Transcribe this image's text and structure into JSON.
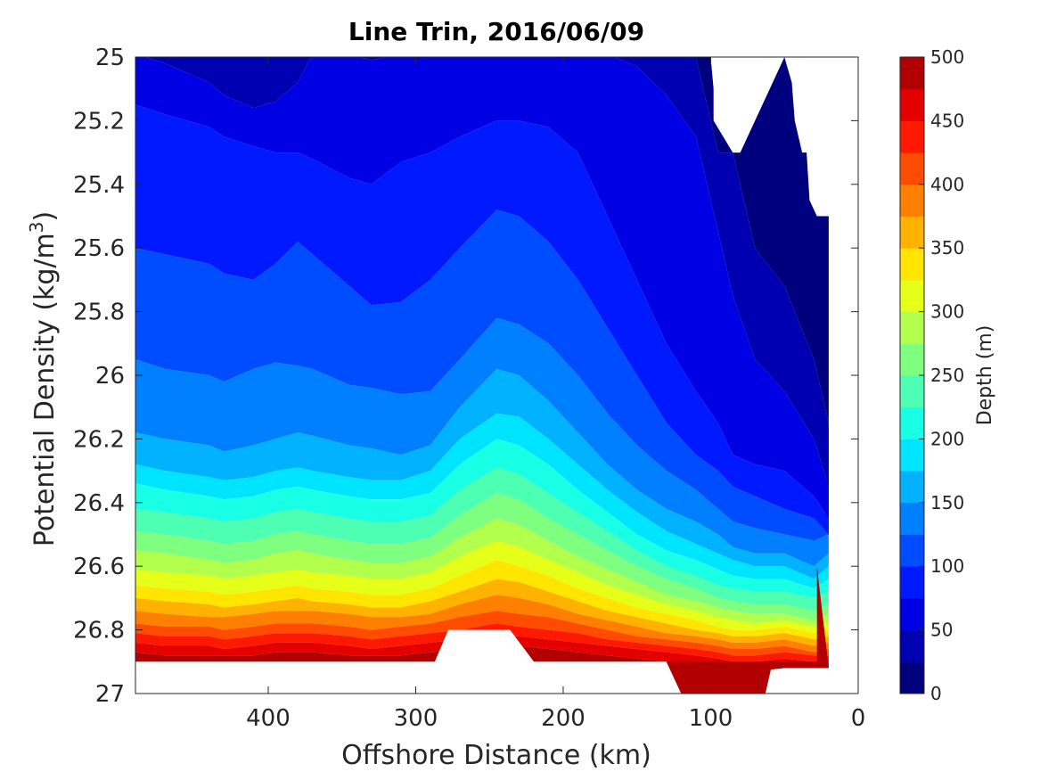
{
  "chart_data": {
    "type": "heatmap",
    "subtype": "filled-contour",
    "title": "Line Trin, 2016/06/09",
    "xlabel": "Offshore Distance (km)",
    "ylabel_main": "Potential Density (kg/m",
    "ylabel_sup": "3",
    "ylabel_tail": ")",
    "xlim": [
      490,
      0
    ],
    "xaxis_reversed": true,
    "ylim": [
      25,
      27
    ],
    "yaxis_reversed": true,
    "xticks": [
      400,
      300,
      200,
      100,
      0
    ],
    "xtick_labels": [
      "400",
      "300",
      "200",
      "100",
      "0"
    ],
    "yticks": [
      25,
      25.2,
      25.4,
      25.6,
      25.8,
      26,
      26.2,
      26.4,
      26.6,
      26.8,
      27
    ],
    "ytick_labels": [
      "25",
      "25.2",
      "25.4",
      "25.6",
      "25.8",
      "26",
      "26.2",
      "26.4",
      "26.6",
      "26.8",
      "27"
    ],
    "colorbar": {
      "label": "Depth (m)",
      "range": [
        0,
        500
      ],
      "level_step": 25,
      "ticks": [
        0,
        50,
        100,
        150,
        200,
        250,
        300,
        350,
        400,
        450,
        500
      ],
      "tick_labels": [
        "0",
        "50",
        "100",
        "150",
        "200",
        "250",
        "300",
        "350",
        "400",
        "450",
        "500"
      ],
      "colors": [
        "#00007f",
        "#0000b2",
        "#0000e5",
        "#0019ff",
        "#004cff",
        "#007fff",
        "#00b2ff",
        "#00e5ff",
        "#19ffe5",
        "#4cffb2",
        "#7fff7f",
        "#b2ff4c",
        "#e5ff19",
        "#ffe500",
        "#ffb200",
        "#ff7f00",
        "#ff4c00",
        "#ff1900",
        "#e50000",
        "#b20000"
      ]
    },
    "x_stations": [
      490,
      470,
      440,
      430,
      410,
      395,
      380,
      370,
      345,
      330,
      310,
      290,
      270,
      245,
      230,
      210,
      190,
      170,
      150,
      130,
      110,
      95,
      85,
      70,
      50,
      30,
      20
    ],
    "contour_lines": [
      {
        "depth": 25,
        "y": [
          24.99,
          24.99,
          24.99,
          24.99,
          24.99,
          24.99,
          24.99,
          24.99,
          24.99,
          24.99,
          24.99,
          24.99,
          24.99,
          24.99,
          24.99,
          24.99,
          24.99,
          24.99,
          24.99,
          24.99,
          25.0,
          25.3,
          25.3,
          25.6,
          25.72,
          25.95,
          26.15
        ]
      },
      {
        "depth": 50,
        "y": [
          24.99,
          25.02,
          25.08,
          25.12,
          25.16,
          25.14,
          25.08,
          24.99,
          24.99,
          25.01,
          24.99,
          24.99,
          24.99,
          24.99,
          24.99,
          24.99,
          24.99,
          24.99,
          25.03,
          25.12,
          25.25,
          25.55,
          25.75,
          25.95,
          26.05,
          26.2,
          26.35
        ]
      },
      {
        "depth": 75,
        "y": [
          25.15,
          25.18,
          25.22,
          25.25,
          25.28,
          25.3,
          25.3,
          25.32,
          25.38,
          25.4,
          25.33,
          25.3,
          25.25,
          25.2,
          25.2,
          25.22,
          25.3,
          25.5,
          25.7,
          25.9,
          26.05,
          26.15,
          26.25,
          26.28,
          26.3,
          26.38,
          26.45
        ]
      },
      {
        "depth": 100,
        "y": [
          25.6,
          25.62,
          25.65,
          25.68,
          25.7,
          25.65,
          25.58,
          25.62,
          25.72,
          25.78,
          25.77,
          25.7,
          25.6,
          25.48,
          25.5,
          25.58,
          25.7,
          25.85,
          26.0,
          26.15,
          26.25,
          26.3,
          26.35,
          26.38,
          26.42,
          26.45,
          26.5
        ]
      },
      {
        "depth": 125,
        "y": [
          25.95,
          25.98,
          26.0,
          26.02,
          25.98,
          25.96,
          25.97,
          25.98,
          26.03,
          26.04,
          26.06,
          26.05,
          25.95,
          25.82,
          25.84,
          25.9,
          26.0,
          26.12,
          26.22,
          26.3,
          26.36,
          26.42,
          26.46,
          26.48,
          26.5,
          26.52,
          26.5
        ]
      },
      {
        "depth": 150,
        "y": [
          26.18,
          26.2,
          26.22,
          26.24,
          26.22,
          26.2,
          26.18,
          26.19,
          26.22,
          26.23,
          26.25,
          26.22,
          26.1,
          25.98,
          26.0,
          26.08,
          26.18,
          26.28,
          26.36,
          26.42,
          26.46,
          26.5,
          26.54,
          26.56,
          26.56,
          26.6,
          26.56
        ]
      },
      {
        "depth": 175,
        "y": [
          26.28,
          26.3,
          26.32,
          26.33,
          26.32,
          26.3,
          26.29,
          26.3,
          26.32,
          26.33,
          26.33,
          26.3,
          26.2,
          26.12,
          26.13,
          26.2,
          26.28,
          26.36,
          26.43,
          26.49,
          26.53,
          26.56,
          26.58,
          26.6,
          26.6,
          26.64,
          26.6
        ]
      },
      {
        "depth": 200,
        "y": [
          26.34,
          26.36,
          26.38,
          26.39,
          26.38,
          26.36,
          26.35,
          26.36,
          26.38,
          26.39,
          26.39,
          26.37,
          26.28,
          26.2,
          26.22,
          26.28,
          26.36,
          26.43,
          26.5,
          26.55,
          26.58,
          26.61,
          26.63,
          26.64,
          26.64,
          26.67,
          26.64
        ]
      },
      {
        "depth": 225,
        "y": [
          26.42,
          26.43,
          26.45,
          26.46,
          26.45,
          26.43,
          26.42,
          26.43,
          26.45,
          26.46,
          26.46,
          26.44,
          26.36,
          26.29,
          26.31,
          26.37,
          26.43,
          26.49,
          26.55,
          26.6,
          26.63,
          26.66,
          26.67,
          26.68,
          26.68,
          26.7,
          26.68
        ]
      },
      {
        "depth": 250,
        "y": [
          26.49,
          26.5,
          26.52,
          26.53,
          26.52,
          26.5,
          26.49,
          26.5,
          26.52,
          26.53,
          26.53,
          26.51,
          26.44,
          26.37,
          26.39,
          26.45,
          26.5,
          26.55,
          26.6,
          26.64,
          26.67,
          26.7,
          26.71,
          26.72,
          26.72,
          26.74,
          26.72
        ]
      },
      {
        "depth": 275,
        "y": [
          26.55,
          26.56,
          26.58,
          26.59,
          26.58,
          26.56,
          26.55,
          26.56,
          26.58,
          26.59,
          26.59,
          26.57,
          26.51,
          26.45,
          26.47,
          26.52,
          26.57,
          26.61,
          26.65,
          26.69,
          26.71,
          26.73,
          26.74,
          26.75,
          26.75,
          26.77,
          26.75
        ]
      },
      {
        "depth": 300,
        "y": [
          26.61,
          26.62,
          26.63,
          26.64,
          26.63,
          26.62,
          26.61,
          26.62,
          26.63,
          26.64,
          26.64,
          26.62,
          26.57,
          26.52,
          26.54,
          26.58,
          26.62,
          26.66,
          26.69,
          26.72,
          26.74,
          26.76,
          26.77,
          26.78,
          26.77,
          26.79,
          26.78
        ]
      },
      {
        "depth": 325,
        "y": [
          26.66,
          26.67,
          26.68,
          26.69,
          26.68,
          26.67,
          26.66,
          26.67,
          26.68,
          26.69,
          26.69,
          26.67,
          26.63,
          26.58,
          26.6,
          26.63,
          26.67,
          26.7,
          26.73,
          26.75,
          26.77,
          26.79,
          26.8,
          26.8,
          26.79,
          26.81,
          26.8
        ]
      },
      {
        "depth": 350,
        "y": [
          26.7,
          26.71,
          26.72,
          26.73,
          26.72,
          26.71,
          26.7,
          26.71,
          26.72,
          26.73,
          26.73,
          26.71,
          26.68,
          26.64,
          26.65,
          26.68,
          26.71,
          26.74,
          26.76,
          26.78,
          26.8,
          26.81,
          26.82,
          26.82,
          26.81,
          26.83,
          26.82
        ]
      },
      {
        "depth": 375,
        "y": [
          26.74,
          26.75,
          26.76,
          26.76,
          26.75,
          26.74,
          26.74,
          26.74,
          26.75,
          26.76,
          26.76,
          26.75,
          26.72,
          26.69,
          26.7,
          26.72,
          26.75,
          26.77,
          26.79,
          26.81,
          26.82,
          26.83,
          26.84,
          26.84,
          26.83,
          26.85,
          26.84
        ]
      },
      {
        "depth": 400,
        "y": [
          26.78,
          26.79,
          26.79,
          26.8,
          26.79,
          26.78,
          26.78,
          26.78,
          26.79,
          26.8,
          26.79,
          26.78,
          26.76,
          26.74,
          26.75,
          26.76,
          26.78,
          26.8,
          26.82,
          26.83,
          26.84,
          26.85,
          26.86,
          26.86,
          26.85,
          26.87,
          26.86
        ]
      },
      {
        "depth": 425,
        "y": [
          26.81,
          26.82,
          26.82,
          26.83,
          26.82,
          26.81,
          26.81,
          26.81,
          26.82,
          26.83,
          26.82,
          26.81,
          26.8,
          26.78,
          26.79,
          26.8,
          26.81,
          26.83,
          26.84,
          26.85,
          26.86,
          26.87,
          26.88,
          26.88,
          26.87,
          26.88,
          26.88
        ]
      },
      {
        "depth": 450,
        "y": [
          26.84,
          26.85,
          26.85,
          26.86,
          26.85,
          26.84,
          26.84,
          26.84,
          26.85,
          26.86,
          26.85,
          26.84,
          26.83,
          26.82,
          26.82,
          26.83,
          26.84,
          26.85,
          26.86,
          26.87,
          26.88,
          26.89,
          26.9,
          26.9,
          26.89,
          26.9,
          26.9
        ]
      },
      {
        "depth": 475,
        "y": [
          26.87,
          26.88,
          26.88,
          26.88,
          26.88,
          26.87,
          26.87,
          26.87,
          26.88,
          26.88,
          26.88,
          26.87,
          26.86,
          26.85,
          26.85,
          26.86,
          26.87,
          26.88,
          26.89,
          26.9,
          26.91,
          26.92,
          26.93,
          26.93,
          26.92,
          26.92,
          26.92
        ]
      }
    ],
    "data_top_boundary": [
      [
        490,
        25.0
      ],
      [
        100,
        25.0
      ],
      [
        98,
        25.1
      ],
      [
        98,
        25.2
      ],
      [
        85,
        25.3
      ],
      [
        80,
        25.3
      ],
      [
        50,
        25.0
      ],
      [
        45,
        25.08
      ],
      [
        43,
        25.2
      ],
      [
        38,
        25.3
      ],
      [
        35,
        25.3
      ],
      [
        33,
        25.45
      ],
      [
        28,
        25.5
      ],
      [
        20,
        25.5
      ],
      [
        20,
        26.5
      ],
      [
        23,
        26.5
      ]
    ],
    "data_bottom_boundary": [
      [
        490,
        26.9
      ],
      [
        287,
        26.9
      ],
      [
        278,
        26.8
      ],
      [
        236,
        26.8
      ],
      [
        220,
        26.9
      ],
      [
        130,
        26.9
      ],
      [
        120,
        27.0
      ],
      [
        63,
        27.0
      ],
      [
        58,
        26.9
      ],
      [
        28,
        26.9
      ],
      [
        28,
        26.6
      ]
    ],
    "white_gaps": [
      {
        "polygon": [
          [
            100,
            25.0
          ],
          [
            98,
            25.1
          ],
          [
            98,
            25.2
          ],
          [
            85,
            25.3
          ],
          [
            80,
            25.3
          ],
          [
            50,
            25.0
          ]
        ]
      },
      {
        "polygon": [
          [
            287,
            26.9
          ],
          [
            278,
            26.8
          ],
          [
            236,
            26.8
          ],
          [
            220,
            26.9
          ]
        ]
      }
    ]
  }
}
